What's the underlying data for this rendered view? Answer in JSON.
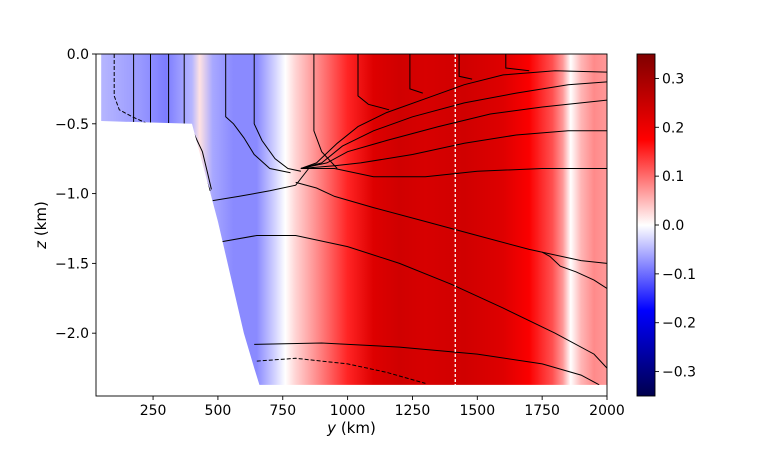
{
  "chart_data": {
    "type": "heatmap",
    "title": "",
    "xlabel": {
      "var": "y",
      "unit": " (km)"
    },
    "ylabel": {
      "var": "z",
      "unit": " (km)"
    },
    "xlim": [
      30,
      2000
    ],
    "ylim": [
      -2.45,
      0.0
    ],
    "xticks": [
      {
        "v": 250,
        "t": "250"
      },
      {
        "v": 500,
        "t": "500"
      },
      {
        "v": 750,
        "t": "750"
      },
      {
        "v": 1000,
        "t": "1000"
      },
      {
        "v": 1250,
        "t": "1250"
      },
      {
        "v": 1500,
        "t": "1500"
      },
      {
        "v": 1750,
        "t": "1750"
      },
      {
        "v": 2000,
        "t": "2000"
      }
    ],
    "yticks": [
      {
        "v": 0.0,
        "t": "0.0"
      },
      {
        "v": -0.5,
        "t": "−0.5"
      },
      {
        "v": -1.0,
        "t": "−1.0"
      },
      {
        "v": -1.5,
        "t": "−1.5"
      },
      {
        "v": -2.0,
        "t": "−2.0"
      }
    ],
    "colorbar": {
      "vmin": -0.35,
      "vmax": 0.35,
      "ticks": [
        {
          "v": 0.3,
          "t": "0.3"
        },
        {
          "v": 0.2,
          "t": "0.2"
        },
        {
          "v": 0.1,
          "t": "0.1"
        },
        {
          "v": 0.0,
          "t": "0.0"
        },
        {
          "v": -0.1,
          "t": "−0.1"
        },
        {
          "v": -0.2,
          "t": "−0.2"
        },
        {
          "v": -0.3,
          "t": "−0.3"
        }
      ],
      "colormap": "seismic"
    },
    "surface_profile": {
      "bottom_depth_km": [
        [
          50,
          -0.48
        ],
        [
          400,
          -0.5
        ],
        [
          450,
          -0.85
        ],
        [
          500,
          -1.2
        ],
        [
          550,
          -1.6
        ],
        [
          600,
          -2.0
        ],
        [
          640,
          -2.25
        ],
        [
          660,
          -2.37
        ],
        [
          2000,
          -2.37
        ]
      ]
    },
    "field_profile": [
      [
        50,
        -0.05
      ],
      [
        200,
        -0.07
      ],
      [
        300,
        -0.09
      ],
      [
        400,
        -0.05
      ],
      [
        430,
        0.02
      ],
      [
        480,
        -0.06
      ],
      [
        560,
        -0.08
      ],
      [
        650,
        -0.08
      ],
      [
        720,
        -0.03
      ],
      [
        760,
        0.0
      ],
      [
        800,
        0.03
      ],
      [
        900,
        0.09
      ],
      [
        1000,
        0.15
      ],
      [
        1100,
        0.22
      ],
      [
        1200,
        0.24
      ],
      [
        1300,
        0.23
      ],
      [
        1450,
        0.24
      ],
      [
        1600,
        0.22
      ],
      [
        1700,
        0.18
      ],
      [
        1790,
        0.12
      ],
      [
        1830,
        0.07
      ],
      [
        1860,
        0.0
      ],
      [
        1900,
        0.05
      ],
      [
        1950,
        0.08
      ],
      [
        2000,
        0.07
      ]
    ],
    "vertical_line_x": 1415,
    "contours": [
      [
        [
          175,
          0
        ],
        [
          175,
          -0.55
        ],
        [
          200,
          -0.7
        ],
        [
          260,
          -0.75
        ],
        [
          340,
          -0.8
        ],
        [
          400,
          -0.82
        ]
      ],
      [
        [
          240,
          0
        ],
        [
          240,
          -0.52
        ],
        [
          290,
          -0.62
        ],
        [
          330,
          -0.7
        ],
        [
          390,
          -0.8
        ],
        [
          440,
          -0.88
        ],
        [
          470,
          -0.98
        ]
      ],
      [
        [
          310,
          0
        ],
        [
          310,
          -0.58
        ],
        [
          360,
          -0.66
        ],
        [
          410,
          -0.75
        ],
        [
          450,
          -0.88
        ],
        [
          470,
          -0.98
        ]
      ],
      [
        [
          370,
          0
        ],
        [
          370,
          -0.5
        ],
        [
          410,
          -0.58
        ],
        [
          440,
          -0.7
        ],
        [
          460,
          -0.85
        ],
        [
          475,
          -0.97
        ]
      ],
      [
        [
          530,
          0
        ],
        [
          530,
          -0.45
        ],
        [
          560,
          -0.5
        ],
        [
          600,
          -0.6
        ],
        [
          640,
          -0.72
        ],
        [
          700,
          -0.82
        ],
        [
          780,
          -0.85
        ]
      ],
      [
        [
          640,
          0
        ],
        [
          640,
          -0.5
        ],
        [
          670,
          -0.62
        ],
        [
          720,
          -0.75
        ],
        [
          770,
          -0.82
        ],
        [
          820,
          -0.84
        ]
      ],
      [
        [
          870,
          0
        ],
        [
          870,
          -0.55
        ],
        [
          900,
          -0.7
        ],
        [
          940,
          -0.78
        ],
        [
          960,
          -0.82
        ]
      ],
      [
        [
          1040,
          0
        ],
        [
          1040,
          -0.3
        ],
        [
          1080,
          -0.36
        ],
        [
          1160,
          -0.4
        ]
      ],
      [
        [
          1240,
          0
        ],
        [
          1240,
          -0.25
        ],
        [
          1290,
          -0.28
        ]
      ],
      [
        [
          1430,
          0
        ],
        [
          1430,
          -0.16
        ],
        [
          1480,
          -0.18
        ]
      ],
      [
        [
          1610,
          0
        ],
        [
          1610,
          -0.1
        ],
        [
          1700,
          -0.12
        ]
      ],
      [
        [
          820,
          -0.82
        ],
        [
          880,
          -0.78
        ],
        [
          960,
          -0.64
        ],
        [
          1040,
          -0.52
        ],
        [
          1150,
          -0.42
        ],
        [
          1300,
          -0.32
        ],
        [
          1450,
          -0.22
        ],
        [
          1600,
          -0.15
        ],
        [
          1800,
          -0.12
        ],
        [
          2000,
          -0.13
        ]
      ],
      [
        [
          820,
          -0.82
        ],
        [
          900,
          -0.78
        ],
        [
          980,
          -0.66
        ],
        [
          1100,
          -0.55
        ],
        [
          1250,
          -0.45
        ],
        [
          1450,
          -0.35
        ],
        [
          1650,
          -0.28
        ],
        [
          1850,
          -0.22
        ],
        [
          2000,
          -0.2
        ]
      ],
      [
        [
          820,
          -0.82
        ],
        [
          920,
          -0.78
        ],
        [
          1000,
          -0.7
        ],
        [
          1150,
          -0.62
        ],
        [
          1350,
          -0.52
        ],
        [
          1550,
          -0.43
        ],
        [
          1750,
          -0.38
        ],
        [
          2000,
          -0.33
        ]
      ],
      [
        [
          820,
          -0.82
        ],
        [
          950,
          -0.8
        ],
        [
          1050,
          -0.78
        ],
        [
          1250,
          -0.72
        ],
        [
          1450,
          -0.64
        ],
        [
          1650,
          -0.58
        ],
        [
          1850,
          -0.55
        ],
        [
          2000,
          -0.55
        ]
      ],
      [
        [
          820,
          -0.82
        ],
        [
          950,
          -0.82
        ],
        [
          1100,
          -0.88
        ],
        [
          1300,
          -0.88
        ],
        [
          1500,
          -0.84
        ],
        [
          1750,
          -0.82
        ],
        [
          2000,
          -0.82
        ]
      ],
      [
        [
          480,
          -1.05
        ],
        [
          580,
          -1.02
        ],
        [
          700,
          -0.98
        ],
        [
          800,
          -0.94
        ],
        [
          850,
          -0.82
        ]
      ],
      [
        [
          800,
          -0.92
        ],
        [
          880,
          -0.96
        ],
        [
          950,
          -1.02
        ],
        [
          1100,
          -1.1
        ],
        [
          1300,
          -1.2
        ],
        [
          1500,
          -1.3
        ],
        [
          1700,
          -1.4
        ],
        [
          1900,
          -1.48
        ],
        [
          2000,
          -1.5
        ]
      ],
      [
        [
          500,
          -1.35
        ],
        [
          650,
          -1.3
        ],
        [
          800,
          -1.3
        ],
        [
          1000,
          -1.38
        ],
        [
          1200,
          -1.5
        ],
        [
          1400,
          -1.65
        ],
        [
          1600,
          -1.82
        ],
        [
          1800,
          -2.0
        ],
        [
          1950,
          -2.15
        ],
        [
          2000,
          -2.25
        ]
      ],
      [
        [
          640,
          -2.08
        ],
        [
          900,
          -2.07
        ],
        [
          1200,
          -2.1
        ],
        [
          1500,
          -2.15
        ],
        [
          1750,
          -2.22
        ],
        [
          1900,
          -2.3
        ],
        [
          1970,
          -2.37
        ]
      ],
      [
        [
          1750,
          -1.42
        ],
        [
          1780,
          -1.45
        ],
        [
          1820,
          -1.52
        ],
        [
          1880,
          -1.56
        ],
        [
          1950,
          -1.62
        ],
        [
          2000,
          -1.68
        ]
      ]
    ],
    "dashed_contours": [
      [
        [
          100,
          0
        ],
        [
          100,
          -0.3
        ],
        [
          120,
          -0.4
        ],
        [
          170,
          -0.45
        ],
        [
          230,
          -0.5
        ],
        [
          290,
          -0.55
        ],
        [
          350,
          -0.6
        ],
        [
          390,
          -0.68
        ],
        [
          420,
          -0.75
        ]
      ],
      [
        [
          650,
          -2.2
        ],
        [
          800,
          -2.18
        ],
        [
          1000,
          -2.22
        ],
        [
          1150,
          -2.28
        ],
        [
          1300,
          -2.36
        ]
      ]
    ]
  }
}
